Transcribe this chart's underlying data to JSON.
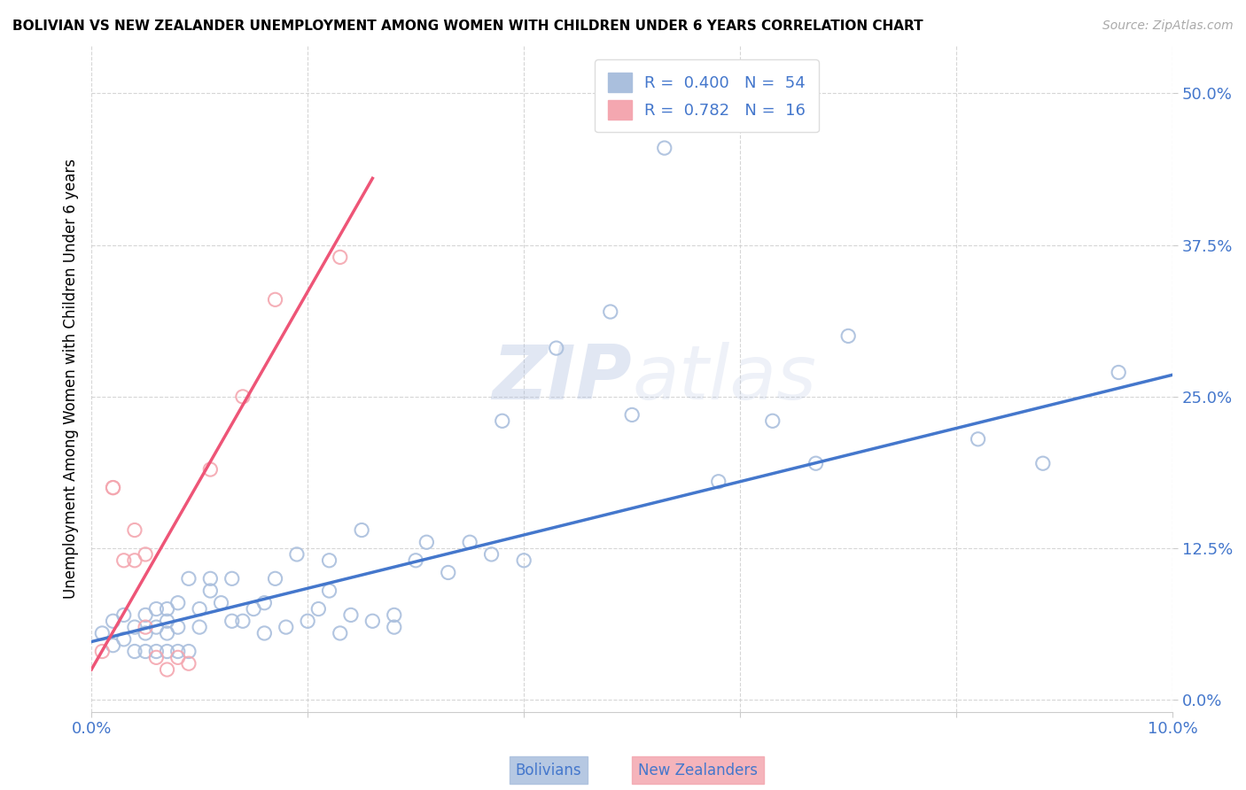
{
  "title": "BOLIVIAN VS NEW ZEALANDER UNEMPLOYMENT AMONG WOMEN WITH CHILDREN UNDER 6 YEARS CORRELATION CHART",
  "source": "Source: ZipAtlas.com",
  "ylabel": "Unemployment Among Women with Children Under 6 years",
  "xlabel_bolivians": "Bolivians",
  "xlabel_newzealanders": "New Zealanders",
  "xlim": [
    0.0,
    0.1
  ],
  "ylim": [
    -0.01,
    0.54
  ],
  "yticks": [
    0.0,
    0.125,
    0.25,
    0.375,
    0.5
  ],
  "ytick_labels": [
    "0.0%",
    "12.5%",
    "25.0%",
    "37.5%",
    "50.0%"
  ],
  "xticks": [
    0.0,
    0.02,
    0.04,
    0.06,
    0.08,
    0.1
  ],
  "xtick_labels": [
    "0.0%",
    "",
    "",
    "",
    "",
    "10.0%"
  ],
  "legend_R_blue": "0.400",
  "legend_N_blue": "54",
  "legend_R_pink": "0.782",
  "legend_N_pink": "16",
  "blue_marker_color": "#aabfdd",
  "pink_marker_color": "#f4a7b0",
  "blue_line_color": "#4477cc",
  "pink_line_color": "#ee5577",
  "tick_label_color": "#4477cc",
  "watermark_zip": "ZIP",
  "watermark_atlas": "atlas",
  "blue_scatter_x": [
    0.001,
    0.002,
    0.002,
    0.003,
    0.003,
    0.004,
    0.004,
    0.005,
    0.005,
    0.005,
    0.006,
    0.006,
    0.006,
    0.007,
    0.007,
    0.007,
    0.007,
    0.008,
    0.008,
    0.008,
    0.009,
    0.009,
    0.01,
    0.01,
    0.011,
    0.011,
    0.012,
    0.013,
    0.013,
    0.014,
    0.015,
    0.016,
    0.016,
    0.017,
    0.018,
    0.019,
    0.02,
    0.021,
    0.022,
    0.022,
    0.023,
    0.024,
    0.025,
    0.026,
    0.028,
    0.028,
    0.03,
    0.031,
    0.033,
    0.035,
    0.037,
    0.038,
    0.04,
    0.043
  ],
  "blue_scatter_y": [
    0.055,
    0.045,
    0.065,
    0.05,
    0.07,
    0.04,
    0.06,
    0.04,
    0.055,
    0.07,
    0.04,
    0.06,
    0.075,
    0.04,
    0.055,
    0.065,
    0.075,
    0.04,
    0.06,
    0.08,
    0.04,
    0.1,
    0.06,
    0.075,
    0.1,
    0.09,
    0.08,
    0.1,
    0.065,
    0.065,
    0.075,
    0.08,
    0.055,
    0.1,
    0.06,
    0.12,
    0.065,
    0.075,
    0.09,
    0.115,
    0.055,
    0.07,
    0.14,
    0.065,
    0.06,
    0.07,
    0.115,
    0.13,
    0.105,
    0.13,
    0.12,
    0.23,
    0.115,
    0.29
  ],
  "blue_scatter_x2": [
    0.048,
    0.05,
    0.053,
    0.058,
    0.063,
    0.067,
    0.07,
    0.082,
    0.088,
    0.095
  ],
  "blue_scatter_y2": [
    0.32,
    0.235,
    0.455,
    0.18,
    0.23,
    0.195,
    0.3,
    0.215,
    0.195,
    0.27
  ],
  "pink_scatter_x": [
    0.001,
    0.002,
    0.002,
    0.003,
    0.004,
    0.004,
    0.005,
    0.005,
    0.006,
    0.007,
    0.008,
    0.009,
    0.011,
    0.014,
    0.017,
    0.023
  ],
  "pink_scatter_y": [
    0.04,
    0.175,
    0.175,
    0.115,
    0.115,
    0.14,
    0.06,
    0.12,
    0.035,
    0.025,
    0.035,
    0.03,
    0.19,
    0.25,
    0.33,
    0.365
  ],
  "blue_trend_x": [
    0.0,
    0.1
  ],
  "blue_trend_y": [
    0.048,
    0.268
  ],
  "pink_trend_x": [
    0.0,
    0.026
  ],
  "pink_trend_y": [
    0.025,
    0.43
  ],
  "background_color": "#ffffff",
  "grid_color": "#cccccc"
}
